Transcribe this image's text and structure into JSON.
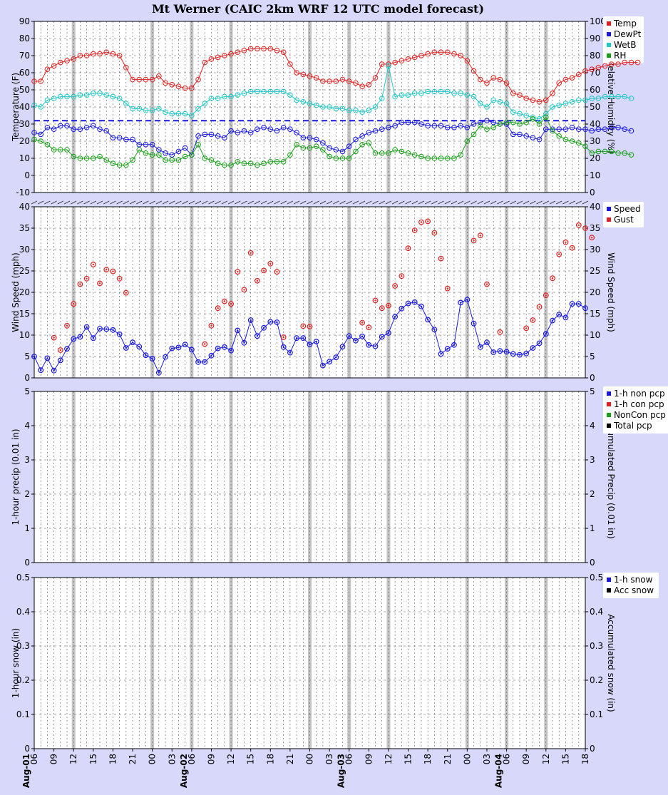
{
  "title": "Mt Werner (CAIC 2km WRF 12 UTC model forecast)",
  "x_axis": {
    "start_hour": 6,
    "hours": 84,
    "date_labels": [
      {
        "hour": 6,
        "text": "Aug-01"
      },
      {
        "hour": 30,
        "text": "Aug-02"
      },
      {
        "hour": 54,
        "text": "Aug-03"
      },
      {
        "hour": 78,
        "text": "Aug-04"
      }
    ],
    "tick_labels": [
      {
        "hour": 6,
        "text": "06"
      },
      {
        "hour": 9,
        "text": "09"
      },
      {
        "hour": 12,
        "text": "12"
      },
      {
        "hour": 15,
        "text": "15"
      },
      {
        "hour": 18,
        "text": "18"
      },
      {
        "hour": 21,
        "text": "21"
      },
      {
        "hour": 24,
        "text": "00"
      },
      {
        "hour": 27,
        "text": "03"
      },
      {
        "hour": 30,
        "text": "06"
      },
      {
        "hour": 33,
        "text": "09"
      },
      {
        "hour": 36,
        "text": "12"
      },
      {
        "hour": 39,
        "text": "15"
      },
      {
        "hour": 42,
        "text": "18"
      },
      {
        "hour": 45,
        "text": "21"
      },
      {
        "hour": 48,
        "text": "00"
      },
      {
        "hour": 51,
        "text": "03"
      },
      {
        "hour": 54,
        "text": "06"
      },
      {
        "hour": 57,
        "text": "09"
      },
      {
        "hour": 60,
        "text": "12"
      },
      {
        "hour": 63,
        "text": "15"
      },
      {
        "hour": 66,
        "text": "18"
      },
      {
        "hour": 69,
        "text": "21"
      },
      {
        "hour": 72,
        "text": "00"
      },
      {
        "hour": 75,
        "text": "03"
      },
      {
        "hour": 78,
        "text": "06"
      },
      {
        "hour": 81,
        "text": "09"
      },
      {
        "hour": 84,
        "text": "12"
      },
      {
        "hour": 87,
        "text": "15"
      },
      {
        "hour": 90,
        "text": "18"
      }
    ],
    "bold_gridlines_hours": [
      12,
      24,
      30,
      36,
      48,
      54,
      60,
      72,
      78,
      84
    ]
  },
  "panels": [
    {
      "id": "temperature",
      "ylabel": "Temperature (F)",
      "y2label": "Relative Humidity (%)",
      "ylim": [
        -10,
        90
      ],
      "y2lim": [
        0,
        100
      ],
      "yticks": [
        "-10",
        "0",
        "10",
        "20",
        "30",
        "40",
        "50",
        "60",
        "70",
        "80",
        "90"
      ],
      "y2ticks": [
        "0",
        "10",
        "20",
        "30",
        "40",
        "50",
        "60",
        "70",
        "80",
        "90",
        "100"
      ],
      "freezing_line": 32,
      "legend": [
        {
          "label": "Temp",
          "color": "#e02020"
        },
        {
          "label": "DewPt",
          "color": "#1818e0"
        },
        {
          "label": "WetB",
          "color": "#20c8c8"
        },
        {
          "label": "RH",
          "color": "#18a018"
        }
      ]
    },
    {
      "id": "wind",
      "ylabel": "Wind Speed (mph)",
      "y2label": "Wind Speed (mph)",
      "ylim": [
        0,
        40
      ],
      "yticks": [
        "0",
        "5",
        "10",
        "15",
        "20",
        "25",
        "30",
        "35",
        "40"
      ],
      "legend": [
        {
          "label": "Speed",
          "color": "#1818e0"
        },
        {
          "label": "Gust",
          "color": "#e02020"
        }
      ]
    },
    {
      "id": "precip",
      "ylabel": "1-hour precip (0.01 in)",
      "y2label": "Accumulated Precip (0.01 in)",
      "ylim": [
        0,
        5
      ],
      "yticks": [
        "0",
        "1",
        "2",
        "3",
        "4",
        "5"
      ],
      "legend": [
        {
          "label": "1-h non pcp",
          "color": "#1818e0"
        },
        {
          "label": "1-h con pcp",
          "color": "#e02020"
        },
        {
          "label": "NonCon pcp",
          "color": "#18a018"
        },
        {
          "label": "Total pcp",
          "color": "#000000"
        }
      ]
    },
    {
      "id": "snow",
      "ylabel": "1-hour snow (in)",
      "y2label": "Accumulated snow (in)",
      "ylim": [
        0,
        0.5
      ],
      "yticks": [
        "0",
        "0.1",
        "0.2",
        "0.3",
        "0.4",
        "0.5"
      ],
      "legend": [
        {
          "label": "1-h snow",
          "color": "#1818e0"
        },
        {
          "label": "Acc snow",
          "color": "#000000"
        }
      ]
    }
  ],
  "chart_data": [
    {
      "type": "line",
      "title": "Mt Werner (CAIC 2km WRF 12 UTC model forecast)",
      "xlabel": "",
      "ylabel": "Temperature (F)",
      "y2label": "Relative Humidity (%)",
      "ylim": [
        -10,
        90
      ],
      "y2lim": [
        0,
        100
      ],
      "x_hours_start": 6,
      "series": [
        {
          "name": "Temp",
          "color": "#e02020",
          "values": [
            55,
            55,
            62,
            64,
            66,
            67,
            68,
            70,
            70,
            71,
            71,
            72,
            71,
            70,
            63,
            56,
            56,
            56,
            56,
            58,
            54,
            53,
            52,
            51,
            51,
            56,
            66,
            68,
            69,
            70,
            71,
            72,
            73,
            74,
            74,
            74,
            74,
            73,
            72,
            65,
            60,
            59,
            58,
            57,
            55,
            55,
            55,
            56,
            55,
            54,
            52,
            53,
            57,
            65,
            65,
            66,
            67,
            68,
            69,
            70,
            71,
            72,
            72,
            72,
            71,
            70,
            67,
            61,
            56,
            54,
            57,
            56,
            54,
            48,
            47,
            45,
            44,
            43,
            44,
            48,
            54,
            56,
            57,
            59,
            61,
            62,
            63,
            64,
            65,
            65,
            66,
            66,
            66
          ]
        },
        {
          "name": "DewPt",
          "color": "#1818e0",
          "values": [
            25,
            24,
            28,
            27,
            29,
            29,
            27,
            27,
            28,
            29,
            27,
            26,
            22,
            22,
            21,
            21,
            18,
            18,
            18,
            15,
            13,
            12,
            14,
            16,
            12,
            23,
            24,
            24,
            23,
            22,
            26,
            25,
            26,
            25,
            27,
            28,
            27,
            26,
            28,
            27,
            25,
            22,
            22,
            21,
            19,
            16,
            15,
            14,
            17,
            21,
            23,
            25,
            26,
            27,
            28,
            29,
            31,
            31,
            31,
            30,
            29,
            29,
            29,
            28,
            28,
            29,
            28,
            30,
            31,
            32,
            31,
            30,
            30,
            24,
            24,
            23,
            22,
            21,
            27,
            27,
            27,
            27,
            28,
            27,
            27,
            26,
            27,
            27,
            28,
            28,
            27,
            26
          ]
        },
        {
          "name": "WetB",
          "color": "#20c8c8",
          "values": [
            41,
            40,
            44,
            45,
            46,
            46,
            46,
            47,
            47,
            48,
            48,
            47,
            46,
            45,
            42,
            39,
            39,
            38,
            38,
            39,
            37,
            36,
            36,
            36,
            35,
            39,
            42,
            45,
            45,
            46,
            46,
            47,
            48,
            49,
            49,
            49,
            49,
            49,
            49,
            47,
            44,
            43,
            42,
            41,
            40,
            40,
            39,
            39,
            38,
            38,
            37,
            38,
            40,
            45,
            64,
            46,
            47,
            47,
            48,
            48,
            49,
            49,
            49,
            49,
            48,
            48,
            47,
            46,
            42,
            40,
            44,
            43,
            42,
            37,
            36,
            35,
            34,
            33,
            36,
            40,
            41,
            42,
            43,
            44,
            44,
            45,
            45,
            46,
            46,
            46,
            46,
            45
          ]
        },
        {
          "name": "RH",
          "color": "#18a018",
          "values": [
            31,
            30,
            28,
            25,
            25,
            25,
            21,
            20,
            20,
            20,
            21,
            19,
            17,
            16,
            16,
            19,
            25,
            23,
            22,
            22,
            19,
            19,
            19,
            21,
            22,
            28,
            20,
            19,
            17,
            16,
            16,
            18,
            17,
            17,
            16,
            17,
            18,
            18,
            18,
            22,
            28,
            26,
            26,
            27,
            25,
            21,
            20,
            20,
            20,
            24,
            28,
            29,
            23,
            23,
            23,
            25,
            24,
            23,
            22,
            21,
            20,
            20,
            20,
            20,
            20,
            22,
            30,
            34,
            39,
            37,
            38,
            40,
            41,
            41,
            40,
            41,
            43,
            40,
            44,
            36,
            33,
            31,
            30,
            29,
            27,
            23,
            24,
            24,
            24,
            23,
            23,
            22
          ]
        }
      ],
      "reference_line": {
        "y": 32,
        "style": "dashed",
        "color": "#1818e0"
      }
    },
    {
      "type": "scatter",
      "ylabel": "Wind Speed (mph)",
      "y2label": "Wind Speed (mph)",
      "ylim": [
        0,
        40
      ],
      "x_hours_start": 6,
      "series": [
        {
          "name": "Speed",
          "color": "#1818e0",
          "connected": true,
          "values": [
            5,
            1.8,
            4.6,
            1.7,
            4.1,
            6.8,
            9.1,
            9.6,
            11.9,
            9.3,
            11.5,
            11.4,
            11.2,
            10.2,
            7.0,
            8.3,
            7.3,
            5.3,
            4.5,
            1.2,
            4.9,
            6.9,
            7.1,
            7.8,
            6.6,
            3.7,
            3.7,
            5.2,
            6.9,
            7.2,
            6.4,
            11.1,
            8.2,
            13.5,
            9.8,
            11.7,
            13.1,
            13.0,
            7.2,
            5.9,
            9.3,
            9.3,
            7.8,
            8.5,
            2.9,
            3.8,
            4.8,
            7.3,
            9.8,
            8.7,
            9.7,
            7.7,
            7.4,
            9.6,
            10.5,
            14.3,
            16.2,
            17.4,
            17.7,
            16.7,
            13.6,
            11.3,
            5.6,
            6.8,
            7.7,
            17.6,
            18.3,
            12.7,
            7.2,
            8.3,
            6.0,
            6.3,
            6.1,
            5.6,
            5.4,
            5.7,
            7.0,
            8.1,
            10.3,
            13.4,
            14.8,
            14.1,
            17.3,
            17.3,
            16.3
          ]
        },
        {
          "name": "Gust",
          "color": "#e02020",
          "connected": false,
          "points": [
            [
              9,
              9.4
            ],
            [
              10,
              6.5
            ],
            [
              11,
              12.2
            ],
            [
              12,
              17.3
            ],
            [
              13,
              21.9
            ],
            [
              14,
              23.2
            ],
            [
              15,
              26.5
            ],
            [
              16,
              22.1
            ],
            [
              17,
              25.3
            ],
            [
              18,
              24.9
            ],
            [
              19,
              23.2
            ],
            [
              20,
              19.9
            ],
            [
              32,
              7.9
            ],
            [
              33,
              12.2
            ],
            [
              34,
              16.3
            ],
            [
              35,
              17.9
            ],
            [
              36,
              17.3
            ],
            [
              37,
              24.8
            ],
            [
              38,
              20.6
            ],
            [
              39,
              29.2
            ],
            [
              40,
              22.7
            ],
            [
              41,
              25.1
            ],
            [
              42,
              26.7
            ],
            [
              43,
              24.8
            ],
            [
              44,
              9.5
            ],
            [
              47,
              12.1
            ],
            [
              48,
              12.0
            ],
            [
              56,
              12.9
            ],
            [
              57,
              11.8
            ],
            [
              58,
              18.1
            ],
            [
              59,
              16.3
            ],
            [
              60,
              16.9
            ],
            [
              61,
              21.5
            ],
            [
              62,
              23.8
            ],
            [
              63,
              30.3
            ],
            [
              64,
              34.5
            ],
            [
              65,
              36.4
            ],
            [
              66,
              36.6
            ],
            [
              67,
              33.9
            ],
            [
              68,
              27.9
            ],
            [
              69,
              20.9
            ],
            [
              73,
              32.1
            ],
            [
              74,
              33.3
            ],
            [
              75,
              21.9
            ],
            [
              77,
              10.7
            ],
            [
              81,
              11.6
            ],
            [
              82,
              13.5
            ],
            [
              83,
              16.6
            ],
            [
              84,
              19.3
            ],
            [
              85,
              23.3
            ],
            [
              86,
              28.9
            ],
            [
              87,
              31.7
            ],
            [
              88,
              30.4
            ],
            [
              89,
              35.7
            ],
            [
              90,
              35.0
            ],
            [
              91,
              32.8
            ]
          ]
        }
      ]
    },
    {
      "type": "bar",
      "ylabel": "1-hour precip (0.01 in)",
      "y2label": "Accumulated Precip (0.01 in)",
      "ylim": [
        0,
        5
      ],
      "series": [
        {
          "name": "1-h non pcp",
          "values": []
        },
        {
          "name": "1-h con pcp",
          "values": []
        },
        {
          "name": "NonCon pcp",
          "values": []
        },
        {
          "name": "Total pcp",
          "values": []
        }
      ]
    },
    {
      "type": "bar",
      "ylabel": "1-hour snow (in)",
      "y2label": "Accumulated snow (in)",
      "ylim": [
        0,
        0.5
      ],
      "series": [
        {
          "name": "1-h snow",
          "values": []
        },
        {
          "name": "Acc snow",
          "values": []
        }
      ]
    }
  ]
}
